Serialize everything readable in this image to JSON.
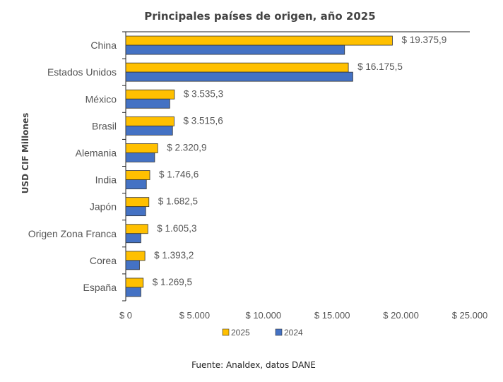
{
  "chart_data": {
    "type": "bar",
    "orientation": "horizontal",
    "title": "Principales países de origen, año 2025",
    "ylabel": "USD CIF Millones",
    "xlabel": "",
    "xlim": [
      0,
      25000
    ],
    "xticks": [
      0,
      5000,
      10000,
      15000,
      20000,
      25000
    ],
    "xtick_labels": [
      "$ 0",
      "$ 5.000",
      "$ 10.000",
      "$ 15.000",
      "$ 20.000",
      "$ 25.000"
    ],
    "categories": [
      "China",
      "Estados Unidos",
      "México",
      "Brasil",
      "Alemania",
      "India",
      "Japón",
      "Origen Zona Franca",
      "Corea",
      "España"
    ],
    "series": [
      {
        "name": "2025",
        "color": "#FFC000",
        "values": [
          19375.9,
          16175.5,
          3535.3,
          3515.6,
          2320.9,
          1746.6,
          1682.5,
          1605.3,
          1393.2,
          1269.5
        ],
        "labels": [
          "$ 19.375,9",
          "$ 16.175,5",
          "$ 3.535,3",
          "$ 3.515,6",
          "$ 2.320,9",
          "$ 1.746,6",
          "$ 1.682,5",
          "$ 1.605,3",
          "$ 1.393,2",
          "$ 1.269,5"
        ]
      },
      {
        "name": "2024",
        "color": "#4472C4",
        "values": [
          15900,
          16500,
          3200,
          3400,
          2100,
          1500,
          1450,
          1100,
          1000,
          1100
        ]
      }
    ],
    "legend": "bottom",
    "grid": false
  },
  "source": "Fuente: Analdex, datos DANE"
}
